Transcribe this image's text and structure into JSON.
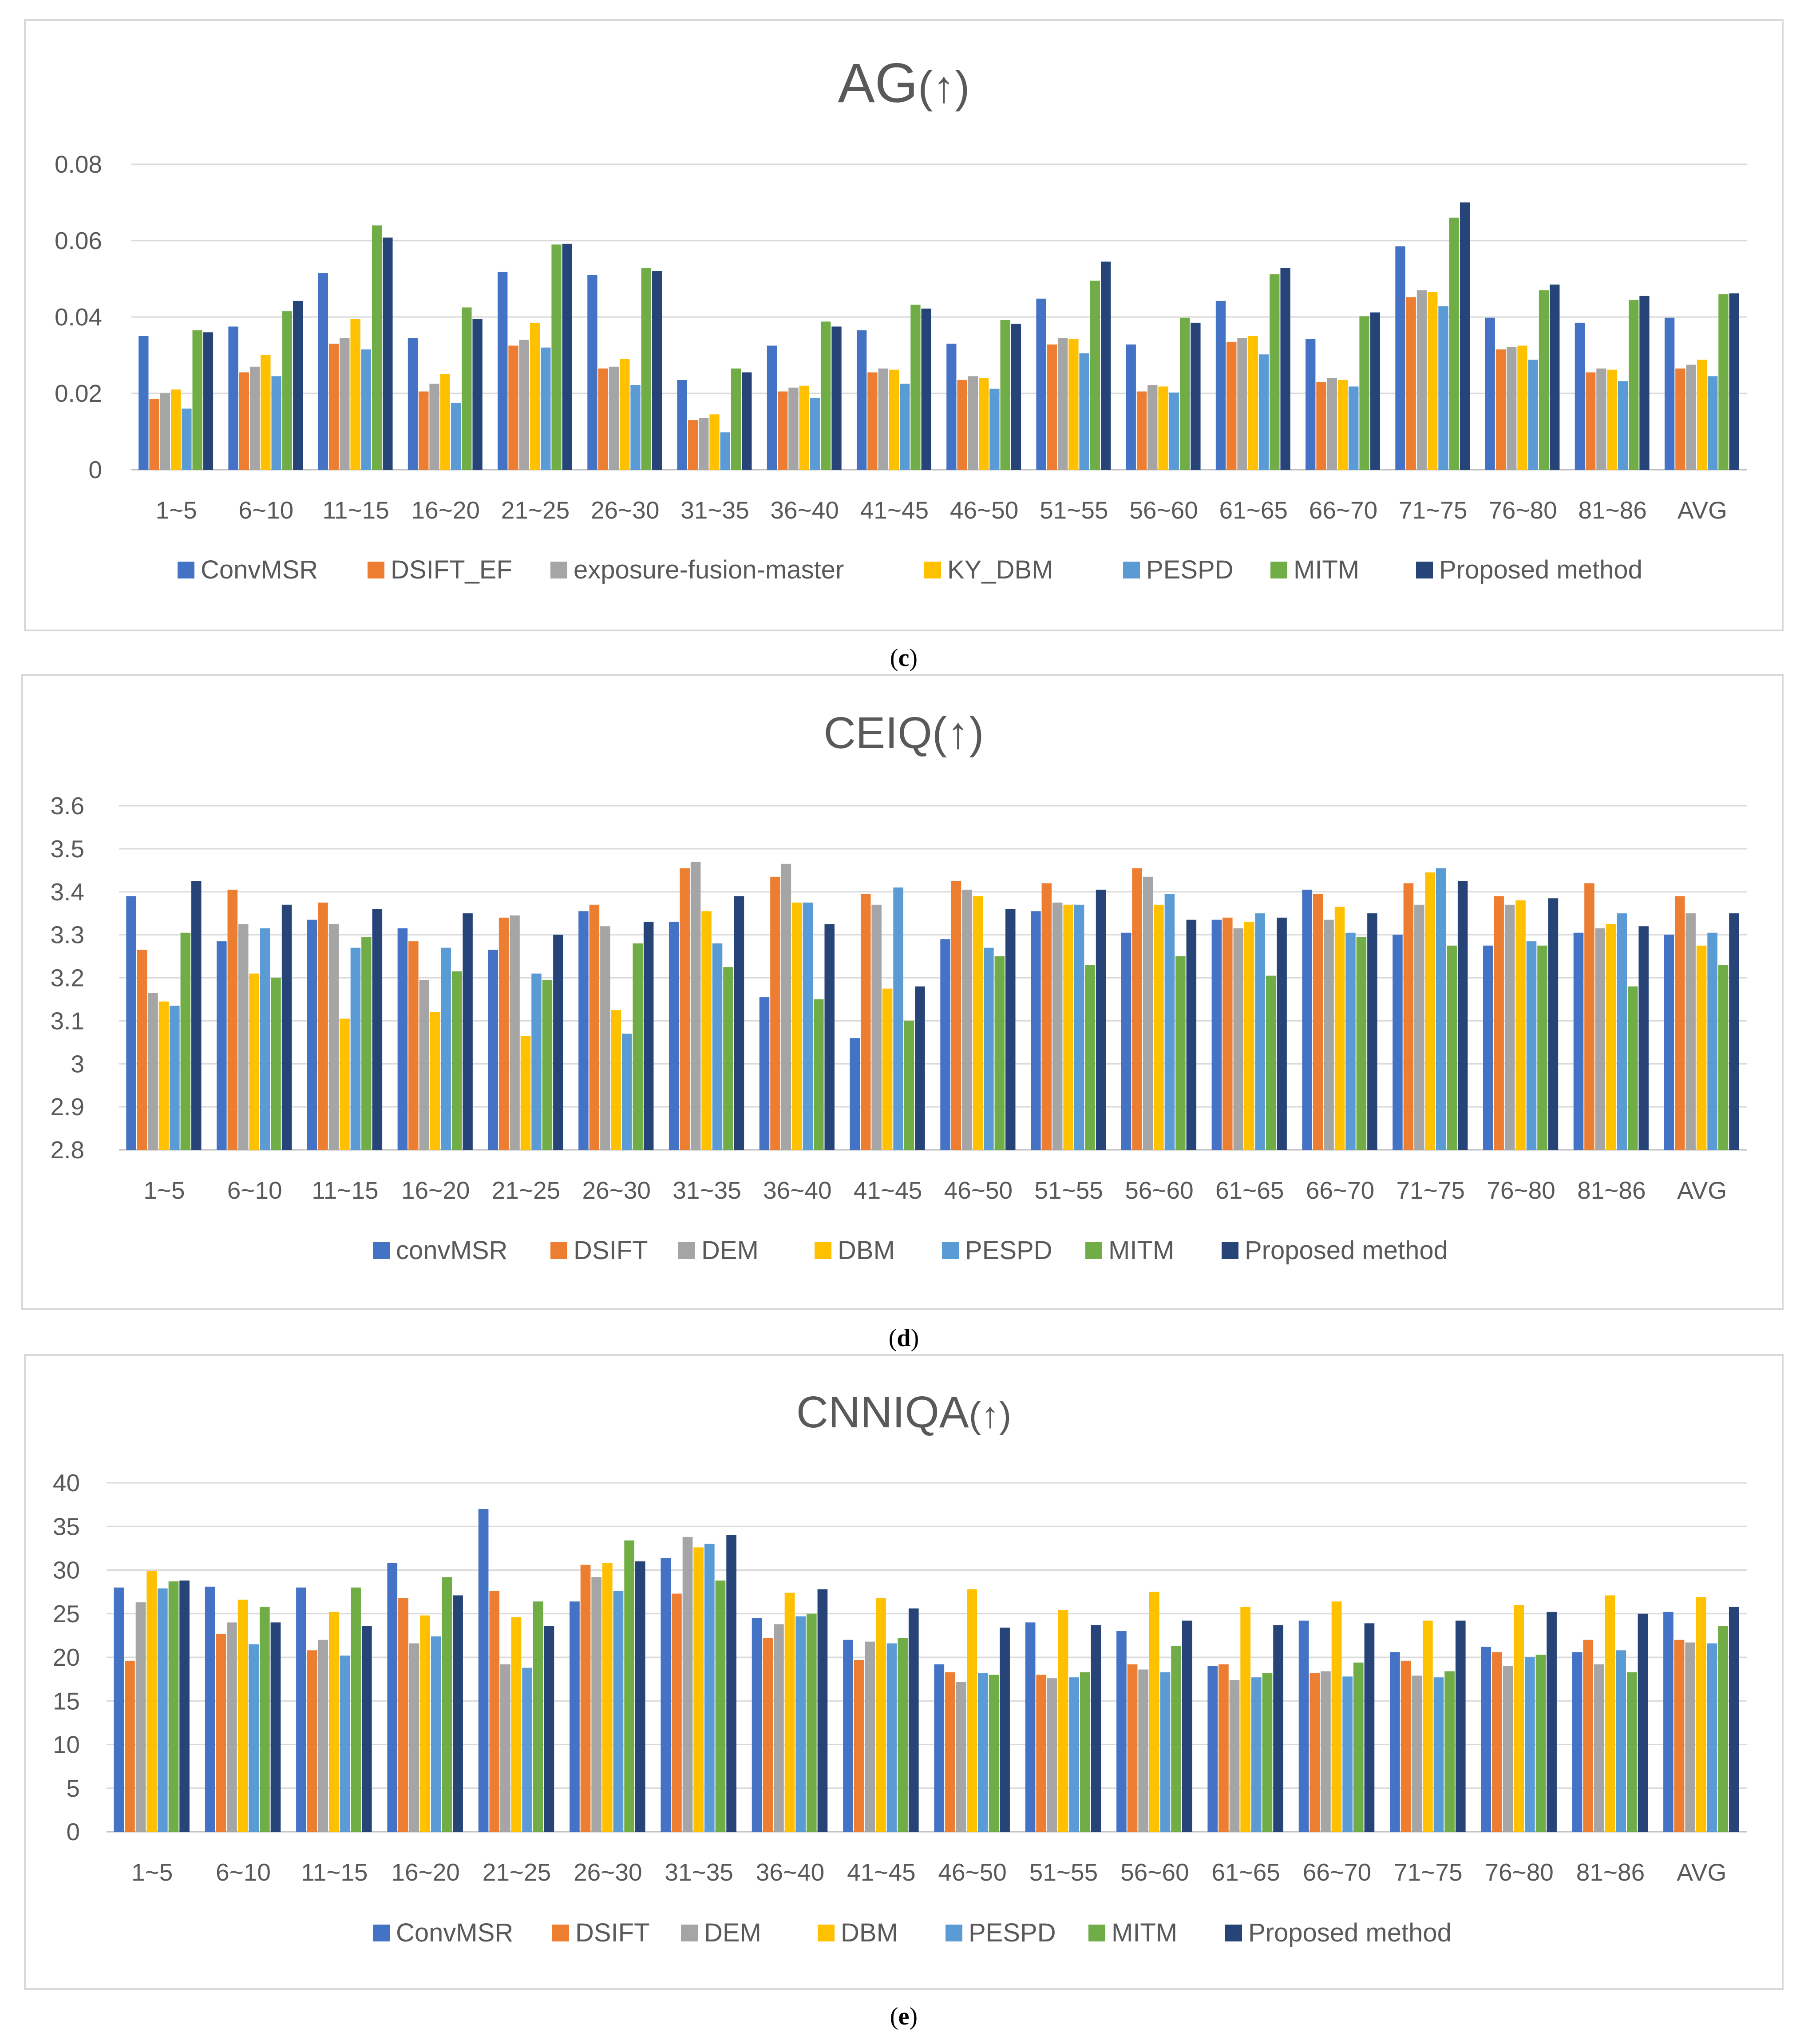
{
  "categories": [
    "1~5",
    "6~10",
    "11~15",
    "16~20",
    "21~25",
    "26~30",
    "31~35",
    "36~40",
    "41~45",
    "46~50",
    "51~55",
    "56~60",
    "61~65",
    "66~70",
    "71~75",
    "76~80",
    "81~86",
    "AVG"
  ],
  "colors": [
    "#4472C4",
    "#ED7D31",
    "#A5A5A5",
    "#FFC000",
    "#5B9BD5",
    "#70AD47",
    "#264478"
  ],
  "chart_data": [
    {
      "type": "bar",
      "title": "AG",
      "title_suffix": "(↑)",
      "caption_open": "(",
      "caption": "c",
      "caption_close": ")",
      "ylim": [
        0,
        0.08
      ],
      "yticks": [
        "0",
        "0.02",
        "0.04",
        "0.06",
        "0.08"
      ],
      "ytick_values": [
        0,
        0.02,
        0.04,
        0.06,
        0.08
      ],
      "series": [
        {
          "name": "ConvMSR",
          "values": [
            0.035,
            0.0375,
            0.0515,
            0.0345,
            0.0518,
            0.051,
            0.0235,
            0.0325,
            0.0365,
            0.033,
            0.0448,
            0.0328,
            0.0442,
            0.0342,
            0.0585,
            0.0398,
            0.0385,
            0.0398
          ]
        },
        {
          "name": "DSIFT_EF",
          "values": [
            0.0185,
            0.0255,
            0.033,
            0.0205,
            0.0325,
            0.0265,
            0.013,
            0.0205,
            0.0255,
            0.0235,
            0.0328,
            0.0205,
            0.0335,
            0.023,
            0.0452,
            0.0315,
            0.0255,
            0.0265
          ]
        },
        {
          "name": "exposure-fusion-master",
          "values": [
            0.02,
            0.027,
            0.0345,
            0.0225,
            0.034,
            0.027,
            0.0135,
            0.0215,
            0.0265,
            0.0245,
            0.0345,
            0.0222,
            0.0345,
            0.024,
            0.047,
            0.0322,
            0.0265,
            0.0275
          ]
        },
        {
          "name": "KY_DBM",
          "values": [
            0.021,
            0.03,
            0.0395,
            0.025,
            0.0385,
            0.029,
            0.0145,
            0.022,
            0.0262,
            0.024,
            0.0342,
            0.0218,
            0.035,
            0.0235,
            0.0465,
            0.0325,
            0.0262,
            0.0288
          ]
        },
        {
          "name": "PESPD",
          "values": [
            0.016,
            0.0245,
            0.0315,
            0.0175,
            0.032,
            0.0222,
            0.0098,
            0.0188,
            0.0225,
            0.0212,
            0.0305,
            0.0202,
            0.0302,
            0.0218,
            0.0428,
            0.0288,
            0.0232,
            0.0245
          ]
        },
        {
          "name": "MITM",
          "values": [
            0.0365,
            0.0415,
            0.064,
            0.0425,
            0.059,
            0.0528,
            0.0265,
            0.0388,
            0.0432,
            0.0392,
            0.0495,
            0.0398,
            0.0512,
            0.0402,
            0.066,
            0.047,
            0.0445,
            0.046
          ]
        },
        {
          "name": "Proposed method",
          "values": [
            0.036,
            0.0442,
            0.0608,
            0.0395,
            0.0592,
            0.052,
            0.0255,
            0.0375,
            0.0422,
            0.0382,
            0.0545,
            0.0385,
            0.0528,
            0.0412,
            0.07,
            0.0485,
            0.0455,
            0.0462
          ]
        }
      ]
    },
    {
      "type": "bar",
      "title": "CEIQ",
      "title_suffix": "(↑)",
      "caption_open": "(",
      "caption": "d",
      "caption_close": ")",
      "ylim": [
        2.8,
        3.6
      ],
      "yticks": [
        "2.8",
        "2.9",
        "3",
        "3.1",
        "3.2",
        "3.3",
        "3.4",
        "3.5",
        "3.6"
      ],
      "ytick_values": [
        2.8,
        2.9,
        3.0,
        3.1,
        3.2,
        3.3,
        3.4,
        3.5,
        3.6
      ],
      "series": [
        {
          "name": "convMSR",
          "values": [
            3.39,
            3.285,
            3.335,
            3.315,
            3.265,
            3.355,
            3.33,
            3.155,
            3.06,
            3.29,
            3.355,
            3.305,
            3.335,
            3.405,
            3.3,
            3.275,
            3.305,
            3.3
          ]
        },
        {
          "name": "DSIFT",
          "values": [
            3.265,
            3.405,
            3.375,
            3.285,
            3.34,
            3.37,
            3.455,
            3.435,
            3.395,
            3.425,
            3.42,
            3.455,
            3.34,
            3.395,
            3.42,
            3.39,
            3.42,
            3.39
          ]
        },
        {
          "name": "DEM",
          "values": [
            3.165,
            3.325,
            3.325,
            3.195,
            3.345,
            3.32,
            3.47,
            3.465,
            3.37,
            3.405,
            3.375,
            3.435,
            3.315,
            3.335,
            3.37,
            3.37,
            3.315,
            3.35
          ]
        },
        {
          "name": "DBM",
          "values": [
            3.145,
            3.21,
            3.105,
            3.12,
            3.065,
            3.125,
            3.355,
            3.375,
            3.175,
            3.39,
            3.37,
            3.37,
            3.33,
            3.365,
            3.445,
            3.38,
            3.325,
            3.275
          ]
        },
        {
          "name": "PESPD",
          "values": [
            3.135,
            3.315,
            3.27,
            3.27,
            3.21,
            3.07,
            3.28,
            3.375,
            3.41,
            3.27,
            3.37,
            3.395,
            3.35,
            3.305,
            3.455,
            3.285,
            3.35,
            3.305
          ]
        },
        {
          "name": "MITM",
          "values": [
            3.305,
            3.2,
            3.295,
            3.215,
            3.195,
            3.28,
            3.225,
            3.15,
            3.1,
            3.25,
            3.23,
            3.25,
            3.205,
            3.295,
            3.275,
            3.275,
            3.18,
            3.23
          ]
        },
        {
          "name": "Proposed method",
          "values": [
            3.425,
            3.37,
            3.36,
            3.35,
            3.3,
            3.33,
            3.39,
            3.325,
            3.18,
            3.36,
            3.405,
            3.335,
            3.34,
            3.35,
            3.425,
            3.385,
            3.32,
            3.35
          ]
        }
      ]
    },
    {
      "type": "bar",
      "title": "CNNIQA",
      "title_suffix": "(↑)",
      "caption_open": "(",
      "caption": "e",
      "caption_close": ")",
      "ylim": [
        0,
        40
      ],
      "yticks": [
        "0",
        "5",
        "10",
        "15",
        "20",
        "25",
        "30",
        "35",
        "40"
      ],
      "ytick_values": [
        0,
        5,
        10,
        15,
        20,
        25,
        30,
        35,
        40
      ],
      "series": [
        {
          "name": "ConvMSR",
          "values": [
            28,
            28.1,
            28,
            30.8,
            37,
            26.4,
            31.4,
            24.5,
            22,
            19.2,
            24,
            23,
            19,
            24.2,
            20.6,
            21.2,
            20.6,
            25.2
          ]
        },
        {
          "name": "DSIFT",
          "values": [
            19.6,
            22.7,
            20.8,
            26.8,
            27.6,
            30.6,
            27.3,
            22.2,
            19.7,
            18.3,
            18,
            19.2,
            19.2,
            18.2,
            19.6,
            20.6,
            22,
            22
          ]
        },
        {
          "name": "DEM",
          "values": [
            26.3,
            24,
            22,
            21.6,
            19.2,
            29.2,
            33.8,
            23.8,
            21.8,
            17.2,
            17.6,
            18.6,
            17.4,
            18.4,
            17.9,
            19,
            19.2,
            21.7
          ]
        },
        {
          "name": "DBM",
          "values": [
            29.9,
            26.6,
            25.2,
            24.8,
            24.6,
            30.8,
            32.6,
            27.4,
            26.8,
            27.8,
            25.4,
            27.5,
            25.8,
            26.4,
            24.2,
            26,
            27.1,
            26.9
          ]
        },
        {
          "name": "PESPD",
          "values": [
            27.9,
            21.5,
            20.2,
            22.4,
            18.8,
            27.6,
            33,
            24.7,
            21.6,
            18.2,
            17.7,
            18.3,
            17.7,
            17.8,
            17.7,
            20,
            20.8,
            21.6
          ]
        },
        {
          "name": "MITM",
          "values": [
            28.7,
            25.8,
            28,
            29.2,
            26.4,
            33.4,
            28.8,
            25,
            22.2,
            18,
            18.3,
            21.3,
            18.2,
            19.4,
            18.4,
            20.3,
            18.3,
            23.6
          ]
        },
        {
          "name": "Proposed method",
          "values": [
            28.8,
            24,
            23.6,
            27.1,
            23.6,
            31,
            34,
            27.8,
            25.6,
            23.4,
            23.7,
            24.2,
            23.7,
            23.9,
            24.2,
            25.2,
            25,
            25.8
          ]
        }
      ]
    }
  ]
}
